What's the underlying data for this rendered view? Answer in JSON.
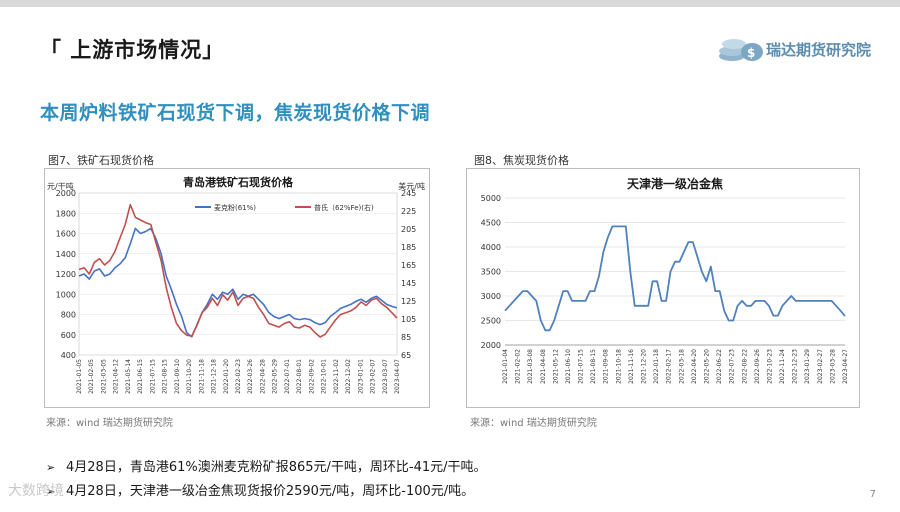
{
  "page": {
    "title": "「 上游市场情况」",
    "logo_text": "瑞达期货研究院",
    "subtitle": "本周炉料铁矿石现货下调，焦炭现货价格下调",
    "page_number": "7",
    "watermark": "大数跨境"
  },
  "figures": [
    {
      "caption": "图7、铁矿石现货价格",
      "source": "来源：wind    瑞达期货研究院"
    },
    {
      "caption": "图8、焦炭现货价格",
      "source": "来源：wind    瑞达期货研究院"
    }
  ],
  "bullets": [
    {
      "arrow": "➢",
      "text": "4月28日，青岛港61%澳洲麦克粉矿报865元/干吨，周环比-41元/干吨。"
    },
    {
      "arrow": "➢",
      "text": "4月28日，天津港一级冶金焦现货报价2590元/吨，周环比-100元/吨。"
    }
  ],
  "chart_data": [
    {
      "type": "line",
      "title": "青岛港铁矿石现货价格",
      "ylabel_left": "元/干吨",
      "ylabel_right": "美元/吨",
      "ylim_left": [
        400,
        2000
      ],
      "yticks_left": [
        "2000",
        "1800",
        "1600",
        "1400",
        "1200",
        "1000",
        "800",
        "600",
        "400"
      ],
      "ylim_right": [
        65,
        245
      ],
      "yticks_right": [
        "245",
        "225",
        "205",
        "185",
        "165",
        "145",
        "125",
        "105",
        "85",
        "65"
      ],
      "legend_position": "top-right",
      "x_labels": [
        "2021-01-05",
        "2021-02-05",
        "2021-03-05",
        "2021-04-12",
        "2021-05-14",
        "2021-06-15",
        "2021-07-15",
        "2021-08-15",
        "2021-09-10",
        "2021-10-20",
        "2021-11-18",
        "2021-12-18",
        "2022-01-20",
        "2022-02-23",
        "2022-03-26",
        "2022-04-28",
        "2022-05-29",
        "2022-07-01",
        "2022-08-01",
        "2022-09-02",
        "2022-10-01",
        "2022-11-02",
        "2022-12-02",
        "2023-01-01",
        "2023-02-07",
        "2023-03-07",
        "2023-04-07"
      ],
      "series": [
        {
          "name": "麦克粉(61%)",
          "axis": "left",
          "color": "#4472c4",
          "values": [
            1180,
            1200,
            1150,
            1230,
            1250,
            1180,
            1200,
            1260,
            1300,
            1360,
            1500,
            1650,
            1600,
            1620,
            1650,
            1550,
            1400,
            1180,
            1050,
            900,
            780,
            620,
            580,
            700,
            820,
            900,
            1000,
            950,
            1020,
            1000,
            1050,
            950,
            1000,
            980,
            1000,
            950,
            900,
            820,
            780,
            760,
            780,
            800,
            760,
            750,
            760,
            750,
            720,
            700,
            720,
            780,
            820,
            860,
            880,
            900,
            930,
            950,
            920,
            960,
            980,
            940,
            900,
            880,
            865
          ]
        },
        {
          "name": "普氏（62%Fe)(右)",
          "axis": "right",
          "color": "#c0504d",
          "values": [
            160,
            162,
            155,
            168,
            172,
            165,
            170,
            180,
            195,
            210,
            232,
            218,
            215,
            212,
            210,
            190,
            170,
            140,
            118,
            100,
            92,
            87,
            86,
            98,
            112,
            118,
            128,
            120,
            132,
            126,
            135,
            120,
            128,
            130,
            128,
            118,
            110,
            100,
            98,
            96,
            100,
            102,
            96,
            95,
            98,
            96,
            90,
            85,
            88,
            96,
            104,
            110,
            112,
            114,
            118,
            124,
            120,
            126,
            128,
            122,
            118,
            112,
            106
          ]
        }
      ]
    },
    {
      "type": "line",
      "title": "天津港一级冶金焦",
      "ylim": [
        2000,
        5000
      ],
      "yticks": [
        "5000",
        "4500",
        "4000",
        "3500",
        "3000",
        "2500",
        "2000"
      ],
      "x_labels": [
        "2021-01-04",
        "2021-02-02",
        "2021-03-08",
        "2021-04-08",
        "2021-05-12",
        "2021-06-10",
        "2021-07-15",
        "2021-08-15",
        "2021-09-08",
        "2021-10-18",
        "2021-11-16",
        "2021-12-20",
        "2022-01-18",
        "2022-02-17",
        "2022-03-18",
        "2022-04-20",
        "2022-05-20",
        "2022-06-22",
        "2022-07-23",
        "2022-08-22",
        "2022-09-26",
        "2022-10-23",
        "2022-11-24",
        "2022-12-23",
        "2023-01-29",
        "2023-02-27",
        "2023-03-28",
        "2023-04-27"
      ],
      "series": [
        {
          "name": "天津港一级冶金焦",
          "color": "#4f81bd",
          "values": [
            2700,
            2800,
            2900,
            3000,
            3100,
            3100,
            3000,
            2900,
            2500,
            2300,
            2300,
            2500,
            2800,
            3100,
            3100,
            2900,
            2900,
            2900,
            2900,
            3100,
            3100,
            3400,
            3900,
            4200,
            4420,
            4420,
            4420,
            4420,
            3500,
            2800,
            2800,
            2800,
            2800,
            3300,
            3300,
            2900,
            2900,
            3500,
            3700,
            3700,
            3900,
            4100,
            4100,
            3800,
            3500,
            3300,
            3600,
            3100,
            3100,
            2700,
            2500,
            2500,
            2800,
            2900,
            2800,
            2800,
            2900,
            2900,
            2900,
            2800,
            2600,
            2600,
            2800,
            2900,
            3000,
            2900,
            2900,
            2900,
            2900,
            2900,
            2900,
            2900,
            2900,
            2900,
            2800,
            2700,
            2590
          ]
        }
      ]
    }
  ]
}
